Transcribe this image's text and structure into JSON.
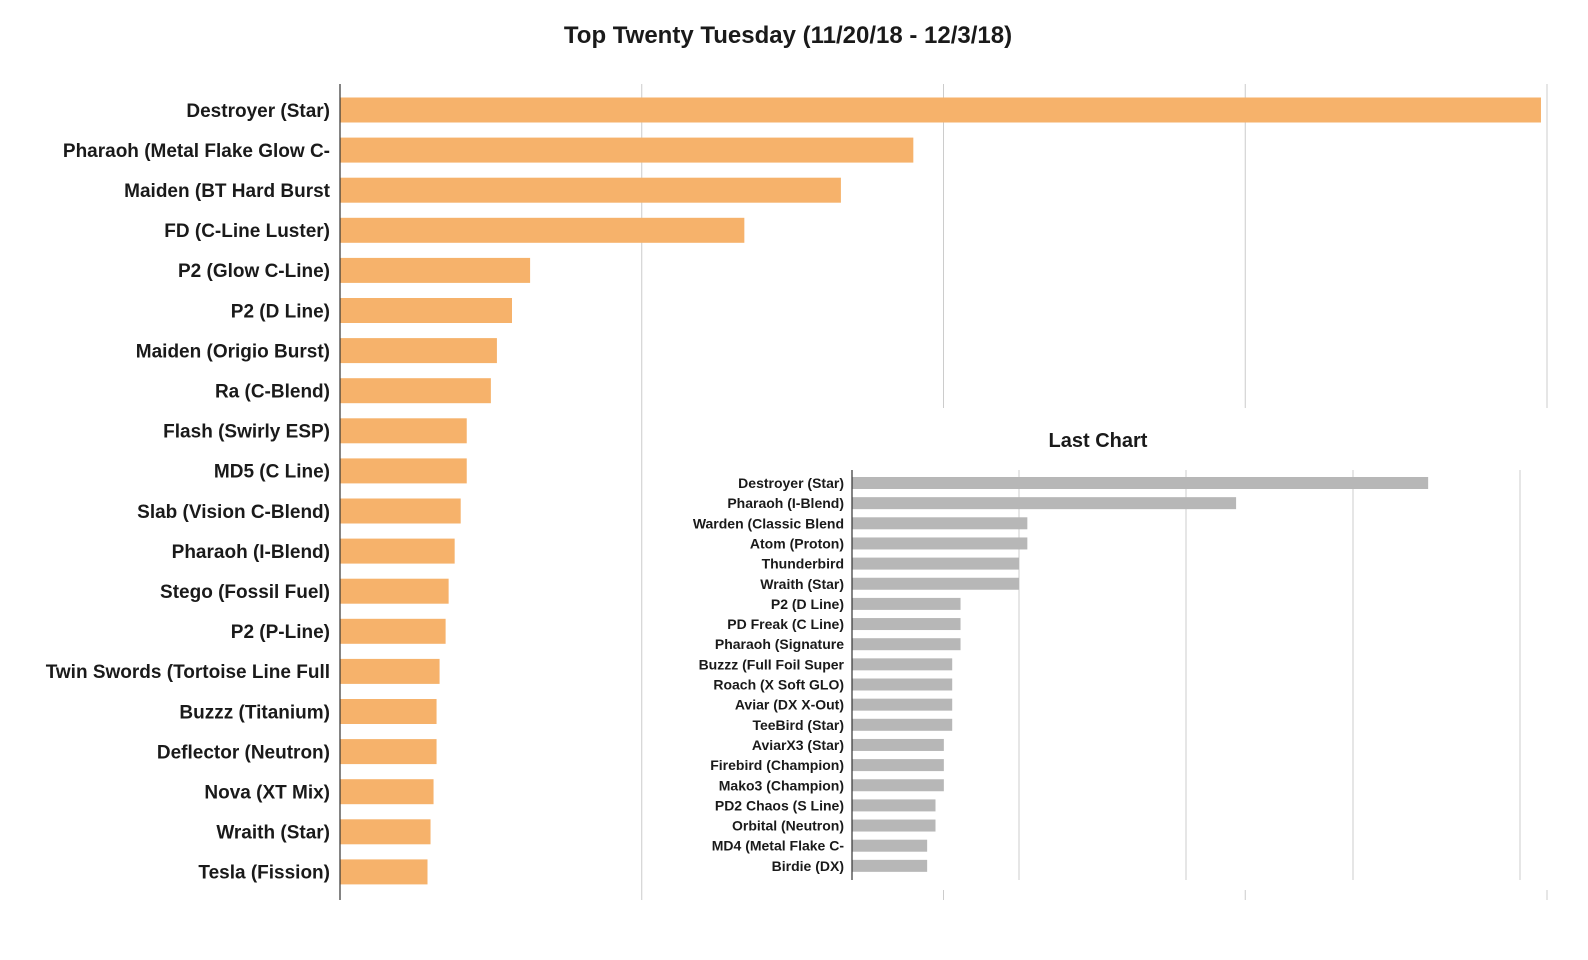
{
  "colors": {
    "main_bar": "#f6b26b",
    "inset_bar": "#b7b7b7",
    "grid": "#cccccc",
    "text": "#1a1a1a"
  },
  "chart_data": [
    {
      "type": "bar",
      "orientation": "horizontal",
      "title": "Top Twenty Tuesday (11/20/18 - 12/3/18)",
      "xlabel": "",
      "ylabel": "",
      "xlim": [
        0,
        40
      ],
      "grid": true,
      "categories": [
        "Destroyer (Star)",
        "Pharaoh (Metal Flake Glow C-",
        "Maiden (BT Hard Burst",
        "FD (C-Line Luster)",
        "P2 (Glow C-Line)",
        "P2 (D Line)",
        "Maiden (Origio Burst)",
        "Ra (C-Blend)",
        "Flash (Swirly ESP)",
        "MD5 (C Line)",
        "Slab (Vision C-Blend)",
        "Pharaoh (I-Blend)",
        "Stego (Fossil Fuel)",
        "P2 (P-Line)",
        "Twin Swords (Tortoise Line Full",
        "Buzzz (Titanium)",
        "Deflector (Neutron)",
        "Nova (XT Mix)",
        "Wraith (Star)",
        "Tesla (Fission)"
      ],
      "values": [
        39.8,
        19.0,
        16.6,
        13.4,
        6.3,
        5.7,
        5.2,
        5.0,
        4.2,
        4.2,
        4.0,
        3.8,
        3.6,
        3.5,
        3.3,
        3.2,
        3.2,
        3.1,
        3.0,
        2.9
      ]
    },
    {
      "type": "bar",
      "orientation": "horizontal",
      "title": "Last Chart",
      "xlabel": "",
      "ylabel": "",
      "xlim": [
        0,
        40
      ],
      "grid": true,
      "categories": [
        "Destroyer (Star)",
        "Pharaoh (I-Blend)",
        "Warden (Classic Blend",
        "Atom (Proton)",
        "Thunderbird",
        "Wraith (Star)",
        "P2 (D Line)",
        "PD Freak (C Line)",
        "Pharaoh (Signature",
        "Buzzz (Full Foil Super",
        "Roach (X Soft GLO)",
        "Aviar (DX X-Out)",
        "TeeBird (Star)",
        "AviarX3 (Star)",
        "Firebird (Champion)",
        "Mako3 (Champion)",
        "PD2 Chaos (S Line)",
        "Orbital (Neutron)",
        "MD4 (Metal Flake C-",
        "Birdie (DX)"
      ],
      "values": [
        34.5,
        23.0,
        10.5,
        10.5,
        10.0,
        10.0,
        6.5,
        6.5,
        6.5,
        6.0,
        6.0,
        6.0,
        6.0,
        5.5,
        5.5,
        5.5,
        5.0,
        5.0,
        4.5,
        4.5
      ]
    }
  ]
}
